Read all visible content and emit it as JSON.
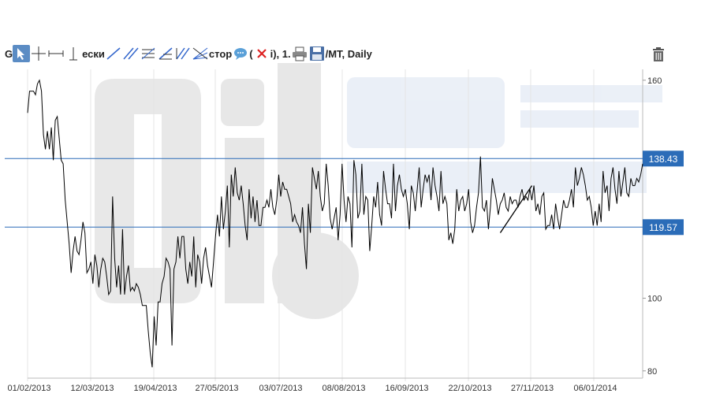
{
  "toolbar": {
    "tools": [
      {
        "name": "cursor-tool-icon",
        "active": true
      },
      {
        "name": "crosshair-tool-icon"
      },
      {
        "name": "horizontal-segment-tool-icon"
      },
      {
        "name": "vertical-line-tool-icon"
      },
      {
        "name": "trend-line-tool-icon"
      },
      {
        "name": "channel-tool-icon"
      },
      {
        "name": "parallel-lines-tool-icon"
      },
      {
        "name": "fibonacci-tool-icon"
      },
      {
        "name": "double-line-tool-icon"
      },
      {
        "name": "fan-tool-icon"
      },
      {
        "name": "comment-tool-icon"
      },
      {
        "name": "delete-tool-icon"
      },
      {
        "name": "print-icon"
      },
      {
        "name": "save-icon"
      }
    ],
    "text_fragments": [
      "G",
      "ески",
      "стор",
      "(",
      "i), 1.",
      "/MT, Daily"
    ]
  },
  "chart_data": {
    "type": "line",
    "x_tick_labels": [
      "01/02/2013",
      "12/03/2013",
      "19/04/2013",
      "27/05/2013",
      "03/07/2013",
      "08/08/2013",
      "16/09/2013",
      "22/10/2013",
      "27/11/2013",
      "06/01/2014"
    ],
    "y_tick_labels": [
      "160",
      "100",
      "80"
    ],
    "ylim": [
      78,
      163
    ],
    "horizontal_lines": [
      {
        "value": 138.43,
        "label": "138.43",
        "color": "#2b6cb8"
      },
      {
        "value": 119.57,
        "label": "119.57",
        "color": "#2b6cb8"
      }
    ],
    "trend_line": {
      "from_index": 239,
      "to_index": 255,
      "from_value": 118,
      "to_value": 131
    },
    "series": [
      {
        "color": "#000000",
        "values": [
          151,
          157,
          157,
          157,
          156,
          159,
          160,
          157,
          145,
          141,
          146,
          141,
          147,
          138,
          149,
          150,
          144,
          138,
          137,
          127,
          121,
          115,
          107,
          113,
          117,
          113,
          112,
          116,
          121,
          118,
          107,
          108,
          110,
          104,
          112,
          109,
          103,
          108,
          111,
          110,
          106,
          101,
          102,
          128,
          111,
          103,
          109,
          101,
          119,
          101,
          106,
          109,
          102,
          103,
          102,
          104,
          103,
          101,
          98,
          98,
          98,
          91,
          85,
          81,
          95,
          87,
          99,
          99,
          104,
          106,
          111,
          110,
          108,
          87,
          108,
          110,
          117,
          111,
          117,
          117,
          108,
          104,
          110,
          106,
          117,
          103,
          112,
          110,
          104,
          111,
          114,
          109,
          106,
          103,
          110,
          117,
          123,
          117,
          128,
          119,
          124,
          131,
          114,
          134,
          128,
          136,
          129,
          127,
          131,
          126,
          120,
          116,
          130,
          122,
          128,
          121,
          127,
          120,
          120,
          125,
          125,
          127,
          125,
          130,
          125,
          123,
          127,
          134,
          128,
          132,
          130,
          130,
          128,
          126,
          121,
          123,
          121,
          120,
          118,
          125,
          115,
          108,
          126,
          118,
          136,
          133,
          130,
          135,
          128,
          124,
          126,
          137,
          131,
          122,
          119,
          122,
          125,
          116,
          123,
          137,
          127,
          121,
          128,
          126,
          114,
          138,
          134,
          122,
          124,
          137,
          123,
          128,
          127,
          113,
          120,
          128,
          125,
          132,
          123,
          120,
          135,
          130,
          126,
          126,
          122,
          137,
          124,
          131,
          134,
          130,
          128,
          130,
          126,
          119,
          131,
          129,
          124,
          130,
          136,
          125,
          130,
          134,
          132,
          134,
          127,
          136,
          131,
          128,
          124,
          135,
          126,
          128,
          126,
          116,
          118,
          115,
          119,
          130,
          124,
          127,
          128,
          124,
          126,
          130,
          121,
          118,
          120,
          125,
          129,
          139,
          125,
          124,
          127,
          119,
          125,
          133,
          130,
          127,
          123,
          126,
          127,
          129,
          125,
          124,
          128,
          126,
          127,
          127,
          125,
          128,
          130,
          127,
          128,
          127,
          130,
          127,
          131,
          124,
          126,
          123,
          128,
          129,
          119,
          120,
          120,
          123,
          119,
          126,
          122,
          119,
          123,
          127,
          125,
          125,
          127,
          130,
          125,
          136,
          131,
          133,
          136,
          134,
          131,
          127,
          128,
          125,
          120,
          124,
          120,
          126,
          121,
          135,
          129,
          131,
          124,
          133,
          136,
          130,
          126,
          135,
          128,
          132,
          136,
          129,
          128,
          133,
          131,
          131,
          133,
          132,
          134,
          137
        ]
      }
    ]
  }
}
